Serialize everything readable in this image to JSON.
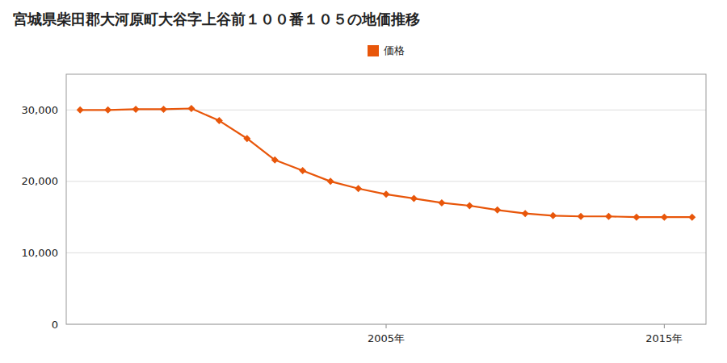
{
  "chart_data": {
    "type": "line",
    "title": "宮城県柴田郡大河原町大谷字上谷前１００番１０５の地価推移",
    "x": [
      1994,
      1995,
      1996,
      1997,
      1998,
      1999,
      2000,
      2001,
      2002,
      2003,
      2004,
      2005,
      2006,
      2007,
      2008,
      2009,
      2010,
      2011,
      2012,
      2013,
      2014,
      2015,
      2016
    ],
    "series": [
      {
        "name": "価格",
        "color": "#e8560a",
        "marker": "diamond",
        "line_style": "solid",
        "values": [
          30000,
          30000,
          30100,
          30100,
          30200,
          28500,
          26000,
          23000,
          21500,
          20000,
          19000,
          18200,
          17600,
          17000,
          16600,
          16000,
          15500,
          15200,
          15100,
          15100,
          15000,
          15000,
          15000
        ]
      }
    ],
    "xlim": [
      1993.5,
      2016.5
    ],
    "xticks": [
      {
        "value": 2005,
        "label": "2005年"
      },
      {
        "value": 2015,
        "label": "2015年"
      }
    ],
    "ylim": [
      0,
      35000
    ],
    "yticks": [
      0,
      {
        "value": 10000,
        "label": "10,000"
      },
      {
        "value": 20000,
        "label": "20,000"
      },
      {
        "value": 30000,
        "label": "30,000"
      }
    ],
    "grid": true,
    "legend": "top"
  }
}
